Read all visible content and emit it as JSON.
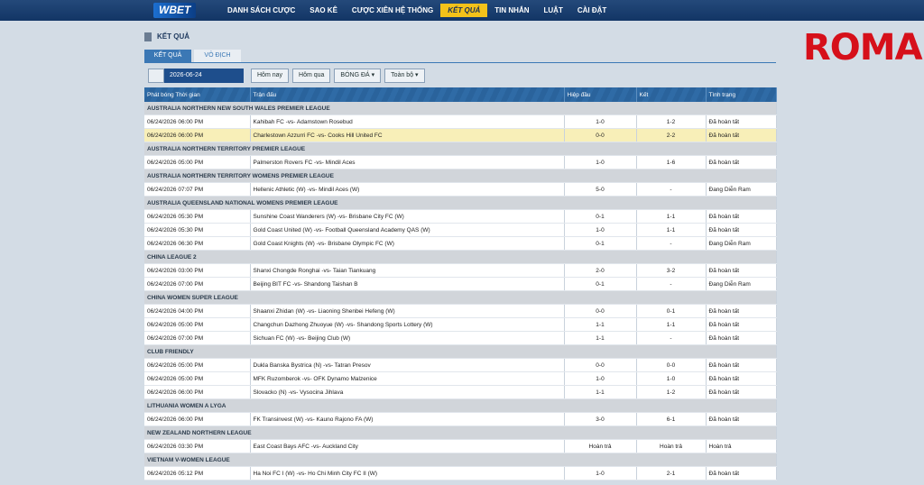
{
  "nav": {
    "logo": "WBET",
    "items": [
      "DANH SÁCH CƯỢC",
      "SAO KÊ",
      "CƯỢC XIÊN HỆ THỐNG",
      "KẾT QUẢ",
      "TIN NHẮN",
      "LUẬT",
      "CÀI ĐẶT"
    ],
    "active": 3
  },
  "watermark": "ROMA",
  "page_title": "KẾT QUẢ",
  "tabs": [
    "KẾT QUẢ",
    "VÔ ĐỊCH"
  ],
  "filters": {
    "date": "2026-06-24",
    "buttons": [
      "Hôm nay",
      "Hôm qua",
      "BÓNG ĐÁ ▾",
      "Toàn bộ ▾"
    ]
  },
  "table": {
    "columns": [
      "Phát bóng Thời gian",
      "Trận đấu",
      "Hiệp đầu",
      "Kết",
      "Tình trạng"
    ],
    "groups": [
      {
        "league": "AUSTRALIA NORTHERN NEW SOUTH WALES PREMIER LEAGUE",
        "matches": [
          [
            "06/24/2026 06:00 PM",
            "Kahibah FC -vs- Adamstown Rosebud",
            "1-0",
            "1-2",
            "Đã hoàn tất"
          ],
          [
            "06/24/2026 06:00 PM",
            "Charlestown Azzurri FC -vs- Cooks Hill United FC",
            "0-0",
            "2-2",
            "Đã hoàn tất"
          ]
        ],
        "selected": 1
      },
      {
        "league": "AUSTRALIA NORTHERN TERRITORY PREMIER LEAGUE",
        "matches": [
          [
            "06/24/2026 05:00 PM",
            "Palmerston Rovers FC -vs- Mindil Aces",
            "1-0",
            "1-6",
            "Đã hoàn tất"
          ]
        ]
      },
      {
        "league": "AUSTRALIA NORTHERN TERRITORY WOMENS PREMIER LEAGUE",
        "matches": [
          [
            "06/24/2026 07:07 PM",
            "Hellenic Athletic (W) -vs- Mindil Aces (W)",
            "5-0",
            "-",
            "Đang Diễn Ram"
          ]
        ]
      },
      {
        "league": "AUSTRALIA QUEENSLAND NATIONAL WOMENS PREMIER LEAGUE",
        "matches": [
          [
            "06/24/2026 05:30 PM",
            "Sunshine Coast Wanderers (W) -vs- Brisbane City FC (W)",
            "0-1",
            "1-1",
            "Đã hoàn tất"
          ],
          [
            "06/24/2026 05:30 PM",
            "Gold Coast United (W) -vs- Football Queensland Academy QAS (W)",
            "1-0",
            "1-1",
            "Đã hoàn tất"
          ],
          [
            "06/24/2026 06:30 PM",
            "Gold Coast Knights (W) -vs- Brisbane Olympic FC (W)",
            "0-1",
            "-",
            "Đang Diễn Ram"
          ]
        ]
      },
      {
        "league": "CHINA LEAGUE 2",
        "matches": [
          [
            "06/24/2026 03:00 PM",
            "Shanxi Chongde Ronghai -vs- Taian Tiankuang",
            "2-0",
            "3-2",
            "Đã hoàn tất"
          ],
          [
            "06/24/2026 07:00 PM",
            "Beijing BIT FC -vs- Shandong Taishan B",
            "0-1",
            "-",
            "Đang Diễn Ram"
          ]
        ]
      },
      {
        "league": "CHINA WOMEN SUPER LEAGUE",
        "matches": [
          [
            "06/24/2026 04:00 PM",
            "Shaanxi Zhidan (W) -vs- Liaoning Shenbei Hefeng (W)",
            "0-0",
            "0-1",
            "Đã hoàn tất"
          ],
          [
            "06/24/2026 05:00 PM",
            "Changchun Dazhong Zhuoyue (W) -vs- Shandong Sports Lottery (W)",
            "1-1",
            "1-1",
            "Đã hoàn tất"
          ],
          [
            "06/24/2026 07:00 PM",
            "Sichuan FC (W) -vs- Beijing Club (W)",
            "1-1",
            "-",
            "Đã hoàn tất"
          ]
        ]
      },
      {
        "league": "CLUB FRIENDLY",
        "matches": [
          [
            "06/24/2026 05:00 PM",
            "Dukla Banska Bystrica (N) -vs- Tatran Presov",
            "0-0",
            "0-0",
            "Đã hoàn tất"
          ],
          [
            "06/24/2026 05:00 PM",
            "MFK Ruzomberok -vs- OFK Dynamo Malzenice",
            "1-0",
            "1-0",
            "Đã hoàn tất"
          ],
          [
            "06/24/2026 06:00 PM",
            "Slovacko (N) -vs- Vysocina Jihlava",
            "1-1",
            "1-2",
            "Đã hoàn tất"
          ]
        ]
      },
      {
        "league": "LITHUANIA WOMEN A LYGA",
        "matches": [
          [
            "06/24/2026 06:00 PM",
            "FK Transinvest (W) -vs- Kauno Rajono FA (W)",
            "3-0",
            "6-1",
            "Đã hoàn tất"
          ]
        ]
      },
      {
        "league": "NEW ZEALAND NORTHERN LEAGUE",
        "matches": [
          [
            "06/24/2026 03:30 PM",
            "East Coast Bays AFC -vs- Auckland City",
            "Hoàn trả",
            "Hoàn trả",
            "Hoàn trả"
          ]
        ]
      },
      {
        "league": "VIETNAM V-WOMEN LEAGUE",
        "matches": [
          [
            "06/24/2026 05:12 PM",
            "Ha Noi FC I (W) -vs- Ho Chi Minh City FC II (W)",
            "1-0",
            "2-1",
            "Đã hoàn tất"
          ]
        ]
      }
    ]
  }
}
